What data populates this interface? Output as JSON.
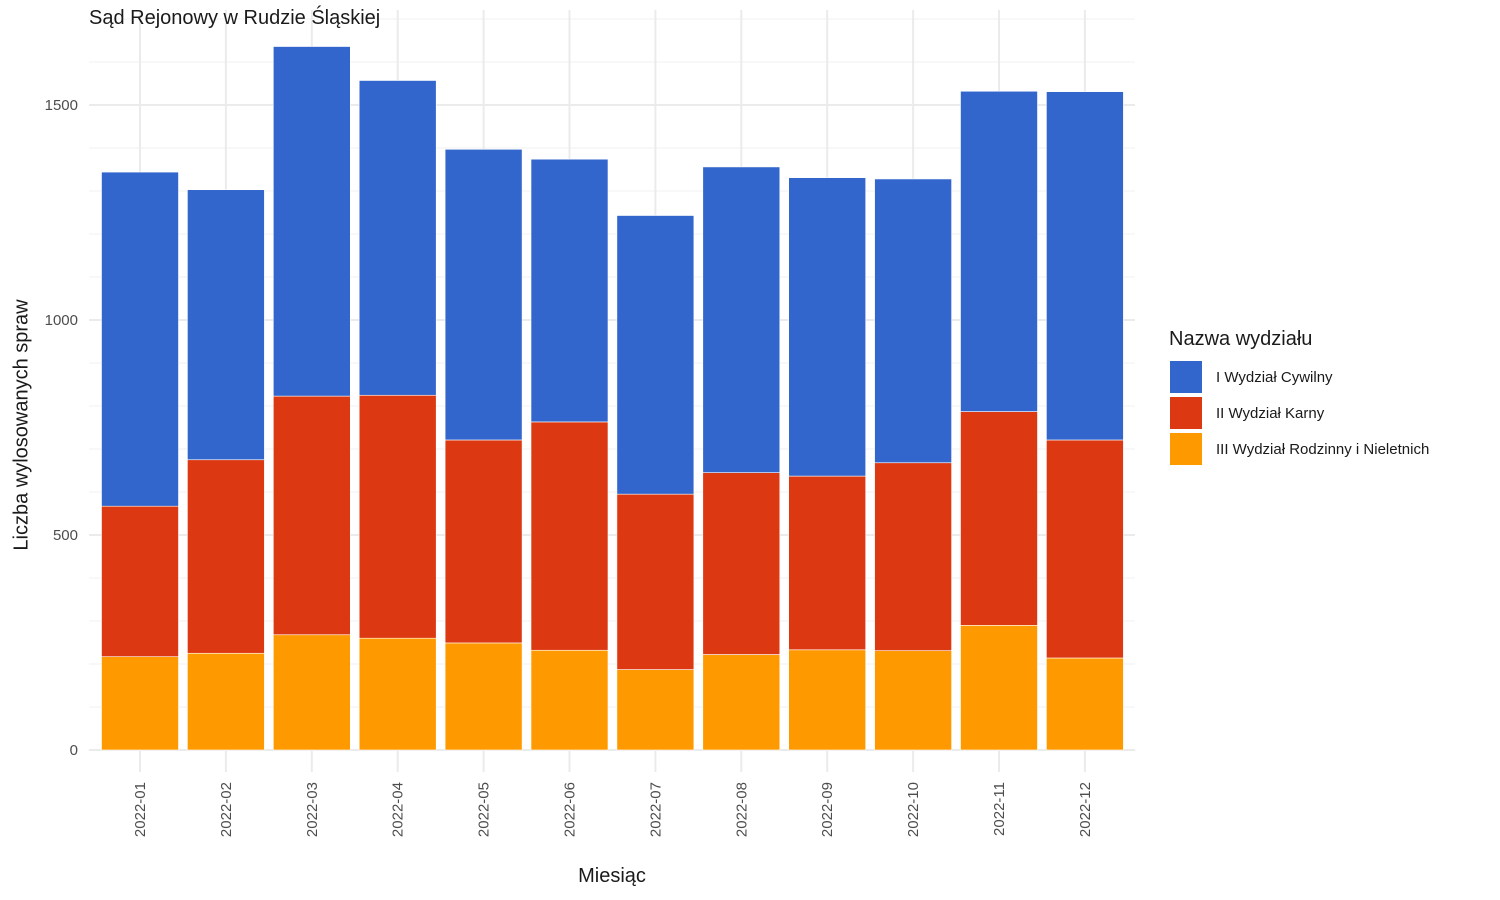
{
  "chart_data": {
    "type": "bar",
    "stacked": true,
    "title": "Sąd Rejonowy w Rudzie Śląskiej",
    "xlabel": "Miesiąc",
    "ylabel": "Liczba wylosowanych spraw",
    "ylim": [
      0,
      1700
    ],
    "yticks": [
      0,
      500,
      1000,
      1500
    ],
    "grid": true,
    "legend_title": "Nazwa wydziału",
    "legend_position": "right",
    "categories": [
      "2022-01",
      "2022-02",
      "2022-03",
      "2022-04",
      "2022-05",
      "2022-06",
      "2022-07",
      "2022-08",
      "2022-09",
      "2022-10",
      "2022-11",
      "2022-12"
    ],
    "series": [
      {
        "name": "III Wydział Rodzinny i Nieletnich",
        "color": "#FF9900",
        "values": [
          217,
          225,
          268,
          260,
          249,
          232,
          187,
          222,
          233,
          231,
          290,
          214
        ]
      },
      {
        "name": "II Wydział Karny",
        "color": "#DC3912",
        "values": [
          350,
          450,
          555,
          565,
          472,
          531,
          408,
          423,
          404,
          437,
          497,
          507
        ]
      },
      {
        "name": "I Wydział Cywilny",
        "color": "#3366CC",
        "values": [
          777,
          628,
          813,
          732,
          676,
          611,
          648,
          711,
          694,
          660,
          745,
          810
        ]
      }
    ],
    "legend_order": [
      "I Wydział Cywilny",
      "II Wydział Karny",
      "III Wydział Rodzinny i Nieletnich"
    ]
  }
}
